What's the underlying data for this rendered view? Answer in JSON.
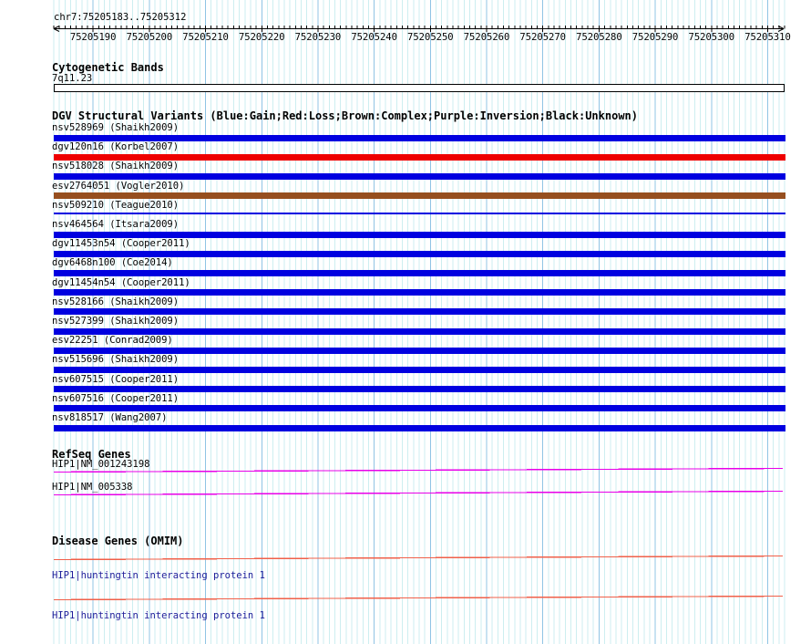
{
  "region": {
    "title": "chr7:75205183..75205312",
    "chrom": "chr7",
    "start": 75205183,
    "end": 75205312
  },
  "ruler": {
    "tick_labels": [
      "75205190",
      "75205200",
      "75205210",
      "75205220",
      "75205230",
      "75205240",
      "75205250",
      "75205260",
      "75205270",
      "75205280",
      "75205290",
      "75205300",
      "75205310"
    ]
  },
  "sections": {
    "cytoband": {
      "title": "Cytogenetic Bands",
      "band": "7q11.23"
    },
    "dgv": {
      "title": "DGV Structural Variants (Blue:Gain;Red:Loss;Brown:Complex;Purple:Inversion;Black:Unknown)",
      "tracks": [
        {
          "label": "nsv528969 (Shaikh2009)",
          "color": "blue",
          "style": "thick"
        },
        {
          "label": "dgv120n16 (Korbel2007)",
          "color": "red",
          "style": "thick"
        },
        {
          "label": "nsv518028 (Shaikh2009)",
          "color": "blue",
          "style": "thick"
        },
        {
          "label": "esv2764051 (Vogler2010)",
          "color": "brown",
          "style": "thick"
        },
        {
          "label": "nsv509210 (Teague2010)",
          "color": "blue",
          "style": "thin"
        },
        {
          "label": "nsv464564 (Itsara2009)",
          "color": "blue",
          "style": "thick"
        },
        {
          "label": "dgv11453n54 (Cooper2011)",
          "color": "blue",
          "style": "thick"
        },
        {
          "label": "dgv6468n100 (Coe2014)",
          "color": "blue",
          "style": "thick"
        },
        {
          "label": "dgv11454n54 (Cooper2011)",
          "color": "blue",
          "style": "thick"
        },
        {
          "label": "nsv528166 (Shaikh2009)",
          "color": "blue",
          "style": "thick"
        },
        {
          "label": "nsv527399 (Shaikh2009)",
          "color": "blue",
          "style": "thick"
        },
        {
          "label": "esv22251 (Conrad2009)",
          "color": "blue",
          "style": "thick"
        },
        {
          "label": "nsv515696 (Shaikh2009)",
          "color": "blue",
          "style": "thick"
        },
        {
          "label": "nsv607515 (Cooper2011)",
          "color": "blue",
          "style": "thick"
        },
        {
          "label": "nsv607516 (Cooper2011)",
          "color": "blue",
          "style": "thick"
        },
        {
          "label": "nsv818517 (Wang2007)",
          "color": "blue",
          "style": "thick"
        }
      ]
    },
    "refseq": {
      "title": "RefSeq Genes",
      "genes": [
        {
          "label": "HIP1|NM_001243198"
        },
        {
          "label": "HIP1|NM_005338"
        }
      ]
    },
    "omim": {
      "title": "Disease Genes (OMIM)",
      "genes": [
        {
          "label": "HIP1|huntingtin interacting protein 1"
        },
        {
          "label": "HIP1|huntingtin interacting protein 1"
        }
      ]
    }
  },
  "colors": {
    "blue": "#0000e0",
    "red": "#ee0000",
    "brown": "#964f1f",
    "refseq_line": "#e800e8",
    "omim_line": "#f0604a",
    "disease_label_text": "#1c1c99",
    "grid_minor": "#cdeef0",
    "grid_major": "#90c4e4",
    "ruler": "#000000"
  }
}
